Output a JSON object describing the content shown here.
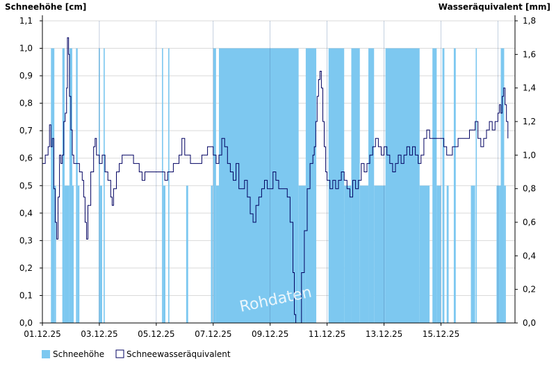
{
  "chart_data": {
    "type": "bar+line",
    "left_axis_title": "Schneehöhe [cm]",
    "right_axis_title": "Wasseräquivalent [mm]",
    "ylim_left": [
      0,
      1.1
    ],
    "ylim_right": [
      0,
      1.8
    ],
    "yticks_left": [
      "0,0",
      "0,1",
      "0,2",
      "0,3",
      "0,4",
      "0,5",
      "0,6",
      "0,7",
      "0,8",
      "0,9",
      "1,0",
      "1,1"
    ],
    "yticks_right": [
      "0,0",
      "0,2",
      "0,4",
      "0,6",
      "0,8",
      "1,0",
      "1,2",
      "1,4",
      "1,6",
      "1,8"
    ],
    "x_tick_labels": [
      "01.12.25",
      "03.12.25",
      "05.12.25",
      "07.12.25",
      "09.12.25",
      "11.12.25",
      "13.12.25",
      "15.12.25"
    ],
    "x_range_days": [
      0,
      16.6
    ],
    "grid": true,
    "legend_position": "bottom-left",
    "watermark": "Rohdaten",
    "colors": {
      "bars": "#7dc8f0",
      "line": "#000060",
      "grid": "#d9d9d9",
      "axis": "#000000"
    },
    "series": [
      {
        "name": "Schneehöhe",
        "kind": "bar",
        "unit": "cm",
        "segments": [
          {
            "x0": 0.3,
            "x1": 0.42,
            "value": 1.0
          },
          {
            "x0": 0.42,
            "x1": 0.48,
            "value": 0.5
          },
          {
            "x0": 0.7,
            "x1": 0.78,
            "value": 1.0
          },
          {
            "x0": 0.78,
            "x1": 0.95,
            "value": 0.5
          },
          {
            "x0": 0.95,
            "x1": 1.05,
            "value": 1.0
          },
          {
            "x0": 1.05,
            "x1": 1.1,
            "value": 0.5
          },
          {
            "x0": 1.18,
            "x1": 1.24,
            "value": 1.0
          },
          {
            "x0": 1.24,
            "x1": 1.3,
            "value": 0.5
          },
          {
            "x0": 1.98,
            "x1": 2.02,
            "value": 1.0
          },
          {
            "x0": 2.02,
            "x1": 2.1,
            "value": 0.5
          },
          {
            "x0": 2.15,
            "x1": 2.19,
            "value": 1.0
          },
          {
            "x0": 4.2,
            "x1": 4.24,
            "value": 1.0
          },
          {
            "x0": 4.24,
            "x1": 4.32,
            "value": 0.5
          },
          {
            "x0": 4.42,
            "x1": 4.46,
            "value": 1.0
          },
          {
            "x0": 5.05,
            "x1": 5.12,
            "value": 0.5
          },
          {
            "x0": 5.92,
            "x1": 5.98,
            "value": 0.5
          },
          {
            "x0": 6.0,
            "x1": 6.1,
            "value": 1.0
          },
          {
            "x0": 6.1,
            "x1": 6.2,
            "value": 0.5
          },
          {
            "x0": 6.2,
            "x1": 9.0,
            "value": 1.0
          },
          {
            "x0": 9.0,
            "x1": 9.25,
            "value": 0.5
          },
          {
            "x0": 9.25,
            "x1": 9.62,
            "value": 1.0
          },
          {
            "x0": 10.05,
            "x1": 10.6,
            "value": 1.0
          },
          {
            "x0": 10.6,
            "x1": 10.85,
            "value": 0.5
          },
          {
            "x0": 10.85,
            "x1": 11.15,
            "value": 1.0
          },
          {
            "x0": 11.15,
            "x1": 11.45,
            "value": 0.5
          },
          {
            "x0": 11.45,
            "x1": 11.65,
            "value": 1.0
          },
          {
            "x0": 11.65,
            "x1": 12.05,
            "value": 0.5
          },
          {
            "x0": 12.05,
            "x1": 13.25,
            "value": 1.0
          },
          {
            "x0": 13.25,
            "x1": 13.6,
            "value": 0.5
          },
          {
            "x0": 13.7,
            "x1": 13.85,
            "value": 1.0
          },
          {
            "x0": 13.85,
            "x1": 14.0,
            "value": 0.5
          },
          {
            "x0": 14.05,
            "x1": 14.12,
            "value": 1.0
          },
          {
            "x0": 14.2,
            "x1": 14.27,
            "value": 0.5
          },
          {
            "x0": 14.45,
            "x1": 14.52,
            "value": 1.0
          },
          {
            "x0": 15.05,
            "x1": 15.2,
            "value": 0.5
          },
          {
            "x0": 15.22,
            "x1": 15.26,
            "value": 1.0
          },
          {
            "x0": 15.95,
            "x1": 16.1,
            "value": 0.5
          },
          {
            "x0": 16.1,
            "x1": 16.22,
            "value": 1.0
          },
          {
            "x0": 16.22,
            "x1": 16.28,
            "value": 0.5
          }
        ]
      },
      {
        "name": "Schneewasseräquivalent",
        "kind": "line",
        "unit": "mm",
        "axis": "right",
        "points": [
          [
            0.0,
            0.95
          ],
          [
            0.1,
            1.0
          ],
          [
            0.2,
            1.05
          ],
          [
            0.25,
            1.18
          ],
          [
            0.3,
            1.05
          ],
          [
            0.35,
            1.1
          ],
          [
            0.4,
            0.8
          ],
          [
            0.45,
            0.6
          ],
          [
            0.5,
            0.5
          ],
          [
            0.55,
            0.75
          ],
          [
            0.6,
            1.0
          ],
          [
            0.65,
            0.95
          ],
          [
            0.7,
            1.0
          ],
          [
            0.75,
            1.2
          ],
          [
            0.8,
            1.25
          ],
          [
            0.85,
            1.4
          ],
          [
            0.88,
            1.7
          ],
          [
            0.92,
            1.6
          ],
          [
            0.95,
            1.35
          ],
          [
            1.0,
            1.15
          ],
          [
            1.05,
            1.0
          ],
          [
            1.1,
            0.95
          ],
          [
            1.2,
            0.95
          ],
          [
            1.3,
            0.9
          ],
          [
            1.4,
            0.85
          ],
          [
            1.45,
            0.75
          ],
          [
            1.5,
            0.6
          ],
          [
            1.55,
            0.5
          ],
          [
            1.6,
            0.7
          ],
          [
            1.7,
            0.9
          ],
          [
            1.8,
            1.05
          ],
          [
            1.85,
            1.1
          ],
          [
            1.9,
            1.0
          ],
          [
            2.0,
            0.95
          ],
          [
            2.1,
            1.0
          ],
          [
            2.2,
            0.9
          ],
          [
            2.3,
            0.85
          ],
          [
            2.4,
            0.75
          ],
          [
            2.45,
            0.7
          ],
          [
            2.5,
            0.8
          ],
          [
            2.6,
            0.9
          ],
          [
            2.7,
            0.95
          ],
          [
            2.8,
            1.0
          ],
          [
            3.0,
            1.0
          ],
          [
            3.2,
            0.95
          ],
          [
            3.4,
            0.9
          ],
          [
            3.5,
            0.85
          ],
          [
            3.6,
            0.9
          ],
          [
            3.8,
            0.9
          ],
          [
            4.0,
            0.9
          ],
          [
            4.2,
            0.9
          ],
          [
            4.3,
            0.85
          ],
          [
            4.4,
            0.9
          ],
          [
            4.6,
            0.95
          ],
          [
            4.8,
            1.0
          ],
          [
            4.9,
            1.1
          ],
          [
            5.0,
            1.0
          ],
          [
            5.2,
            0.95
          ],
          [
            5.4,
            0.95
          ],
          [
            5.6,
            1.0
          ],
          [
            5.8,
            1.05
          ],
          [
            6.0,
            1.0
          ],
          [
            6.1,
            0.95
          ],
          [
            6.2,
            1.0
          ],
          [
            6.3,
            1.1
          ],
          [
            6.4,
            1.05
          ],
          [
            6.5,
            0.95
          ],
          [
            6.6,
            0.9
          ],
          [
            6.7,
            0.85
          ],
          [
            6.8,
            0.95
          ],
          [
            6.9,
            0.8
          ],
          [
            7.0,
            0.8
          ],
          [
            7.1,
            0.85
          ],
          [
            7.2,
            0.75
          ],
          [
            7.3,
            0.65
          ],
          [
            7.4,
            0.6
          ],
          [
            7.5,
            0.7
          ],
          [
            7.6,
            0.75
          ],
          [
            7.7,
            0.8
          ],
          [
            7.8,
            0.85
          ],
          [
            7.9,
            0.8
          ],
          [
            8.0,
            0.8
          ],
          [
            8.1,
            0.9
          ],
          [
            8.2,
            0.85
          ],
          [
            8.3,
            0.8
          ],
          [
            8.4,
            0.8
          ],
          [
            8.5,
            0.8
          ],
          [
            8.6,
            0.75
          ],
          [
            8.7,
            0.6
          ],
          [
            8.8,
            0.3
          ],
          [
            8.85,
            0.05
          ],
          [
            8.9,
            0.0
          ],
          [
            9.0,
            0.0
          ],
          [
            9.1,
            0.3
          ],
          [
            9.2,
            0.55
          ],
          [
            9.3,
            0.8
          ],
          [
            9.4,
            0.95
          ],
          [
            9.5,
            1.0
          ],
          [
            9.55,
            1.05
          ],
          [
            9.6,
            1.2
          ],
          [
            9.65,
            1.35
          ],
          [
            9.7,
            1.45
          ],
          [
            9.75,
            1.5
          ],
          [
            9.8,
            1.4
          ],
          [
            9.85,
            1.2
          ],
          [
            9.9,
            1.05
          ],
          [
            9.95,
            0.9
          ],
          [
            10.0,
            0.85
          ],
          [
            10.1,
            0.8
          ],
          [
            10.2,
            0.85
          ],
          [
            10.3,
            0.8
          ],
          [
            10.4,
            0.85
          ],
          [
            10.5,
            0.9
          ],
          [
            10.6,
            0.85
          ],
          [
            10.7,
            0.8
          ],
          [
            10.8,
            0.75
          ],
          [
            10.9,
            0.85
          ],
          [
            11.0,
            0.8
          ],
          [
            11.1,
            0.85
          ],
          [
            11.2,
            0.95
          ],
          [
            11.3,
            0.9
          ],
          [
            11.4,
            0.95
          ],
          [
            11.5,
            1.0
          ],
          [
            11.6,
            1.05
          ],
          [
            11.7,
            1.1
          ],
          [
            11.8,
            1.05
          ],
          [
            11.9,
            1.0
          ],
          [
            12.0,
            1.05
          ],
          [
            12.1,
            1.0
          ],
          [
            12.2,
            0.95
          ],
          [
            12.3,
            0.9
          ],
          [
            12.4,
            0.95
          ],
          [
            12.5,
            1.0
          ],
          [
            12.6,
            0.95
          ],
          [
            12.7,
            1.0
          ],
          [
            12.8,
            1.05
          ],
          [
            12.9,
            1.0
          ],
          [
            13.0,
            1.05
          ],
          [
            13.1,
            1.0
          ],
          [
            13.2,
            0.95
          ],
          [
            13.3,
            1.0
          ],
          [
            13.4,
            1.1
          ],
          [
            13.5,
            1.15
          ],
          [
            13.6,
            1.1
          ],
          [
            13.7,
            1.1
          ],
          [
            13.8,
            1.1
          ],
          [
            14.0,
            1.1
          ],
          [
            14.1,
            1.05
          ],
          [
            14.2,
            1.0
          ],
          [
            14.4,
            1.05
          ],
          [
            14.6,
            1.1
          ],
          [
            14.8,
            1.1
          ],
          [
            15.0,
            1.15
          ],
          [
            15.2,
            1.2
          ],
          [
            15.3,
            1.1
          ],
          [
            15.4,
            1.05
          ],
          [
            15.5,
            1.1
          ],
          [
            15.6,
            1.15
          ],
          [
            15.7,
            1.2
          ],
          [
            15.8,
            1.15
          ],
          [
            15.9,
            1.2
          ],
          [
            16.0,
            1.25
          ],
          [
            16.05,
            1.3
          ],
          [
            16.1,
            1.25
          ],
          [
            16.15,
            1.35
          ],
          [
            16.2,
            1.4
          ],
          [
            16.25,
            1.3
          ],
          [
            16.3,
            1.2
          ],
          [
            16.35,
            1.1
          ]
        ]
      }
    ]
  }
}
